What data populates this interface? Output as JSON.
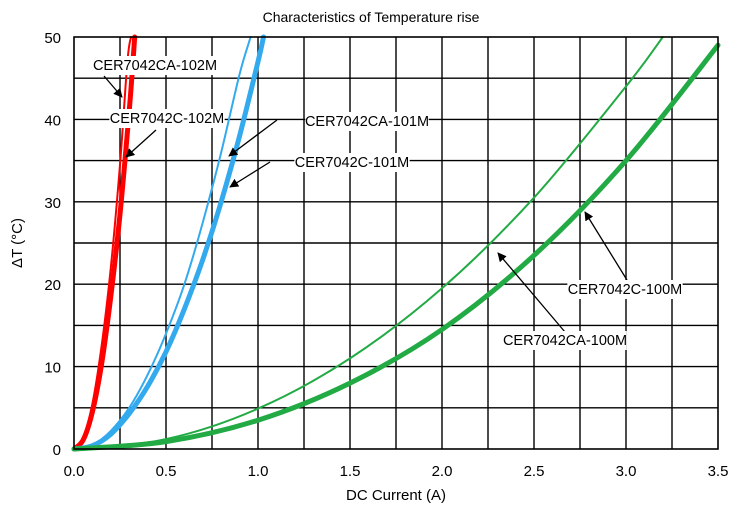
{
  "chart_data": {
    "type": "line",
    "title": "Characteristics of Temperature rise",
    "xlabel": "DC Current (A)",
    "ylabel": "ΔT (°C)",
    "xlim": [
      0,
      3.5
    ],
    "ylim": [
      0,
      50
    ],
    "x_ticks": [
      "0.0",
      "0.5",
      "1.0",
      "1.5",
      "2.0",
      "2.5",
      "3.0",
      "3.5"
    ],
    "y_ticks": [
      "0",
      "10",
      "20",
      "30",
      "40",
      "50"
    ],
    "grid": true,
    "series": [
      {
        "name": "CER7042CA-102M",
        "color": "#ff0000",
        "style": "thin",
        "x": [
          0,
          0.05,
          0.1,
          0.15,
          0.2,
          0.25,
          0.29,
          0.31
        ],
        "y": [
          0,
          1.4,
          5.5,
          12.5,
          22,
          34.5,
          47,
          50
        ]
      },
      {
        "name": "CER7042C-102M",
        "color": "#ff0000",
        "style": "thick",
        "x": [
          0,
          0.05,
          0.1,
          0.15,
          0.2,
          0.25,
          0.3,
          0.33
        ],
        "y": [
          0,
          1.1,
          4.5,
          10.3,
          18.5,
          28.5,
          41,
          50
        ]
      },
      {
        "name": "CER7042CA-101M",
        "color": "#33aaee",
        "style": "thin",
        "x": [
          0,
          0.1,
          0.2,
          0.3,
          0.4,
          0.5,
          0.6,
          0.7,
          0.8,
          0.9,
          0.96
        ],
        "y": [
          0,
          0.5,
          2.2,
          5,
          9,
          14,
          20,
          27.5,
          36,
          45.5,
          50
        ]
      },
      {
        "name": "CER7042C-101M",
        "color": "#33aaee",
        "style": "thick",
        "x": [
          0,
          0.1,
          0.2,
          0.3,
          0.4,
          0.5,
          0.6,
          0.7,
          0.8,
          0.9,
          1.0,
          1.03
        ],
        "y": [
          0,
          0.4,
          1.8,
          4.3,
          7.6,
          11.8,
          17,
          23,
          30,
          38,
          47,
          50
        ]
      },
      {
        "name": "CER7042CA-100M",
        "color": "#22aa44",
        "style": "thin",
        "x": [
          0,
          0.5,
          1.0,
          1.5,
          2.0,
          2.5,
          3.0,
          3.2
        ],
        "y": [
          0,
          1.2,
          4.9,
          11,
          19.5,
          30.5,
          44,
          50
        ]
      },
      {
        "name": "CER7042C-100M",
        "color": "#22aa44",
        "style": "thick",
        "x": [
          0,
          0.5,
          1.0,
          1.5,
          2.0,
          2.5,
          3.0,
          3.5
        ],
        "y": [
          0,
          0.9,
          3.5,
          8,
          14.5,
          23.5,
          35,
          49
        ]
      }
    ]
  }
}
